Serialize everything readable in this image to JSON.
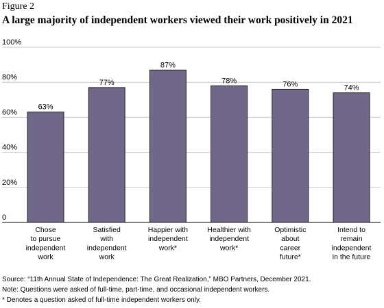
{
  "figure_label": "Figure 2",
  "chart_data": {
    "type": "bar",
    "title": "A large majority of independent workers viewed their work positively in 2021",
    "categories": [
      "Chose to pursue independent work",
      "Satisfied with independent work",
      "Happier with independent work*",
      "Healthier with independent work*",
      "Optimistic about career future*",
      "Intend to remain independent in the future"
    ],
    "category_lines": [
      [
        "Chose",
        "to pursue",
        "independent",
        "work"
      ],
      [
        "Satisfied",
        "with",
        "independent",
        "work"
      ],
      [
        "Happier with",
        "independent",
        "work*"
      ],
      [
        "Healthier with",
        "independent",
        "work*"
      ],
      [
        "Optimistic",
        "about",
        "career",
        "future*"
      ],
      [
        "Intend to",
        "remain",
        "independent",
        "in the future"
      ]
    ],
    "values": [
      63,
      77,
      87,
      78,
      76,
      74
    ],
    "data_labels": [
      "63%",
      "77%",
      "87%",
      "78%",
      "76%",
      "74%"
    ],
    "ylim": [
      0,
      100
    ],
    "yticks": [
      0,
      20,
      40,
      60,
      80,
      100
    ],
    "ytick_labels": [
      "0",
      "20%",
      "40%",
      "60%",
      "80%",
      "100%"
    ],
    "xlabel": "",
    "ylabel": "",
    "grid": true,
    "bar_color": "#706789",
    "grid_color": "#c8c8c8"
  },
  "notes": {
    "source": "Source: “11th Annual State of Independence: The Great Realization,” MBO Partners, December 2021.",
    "note": "Note: Questions were asked of full-time, part-time, and occasional independent workers.",
    "asterisk": "* Denotes a question asked of full-time independent workers only."
  }
}
